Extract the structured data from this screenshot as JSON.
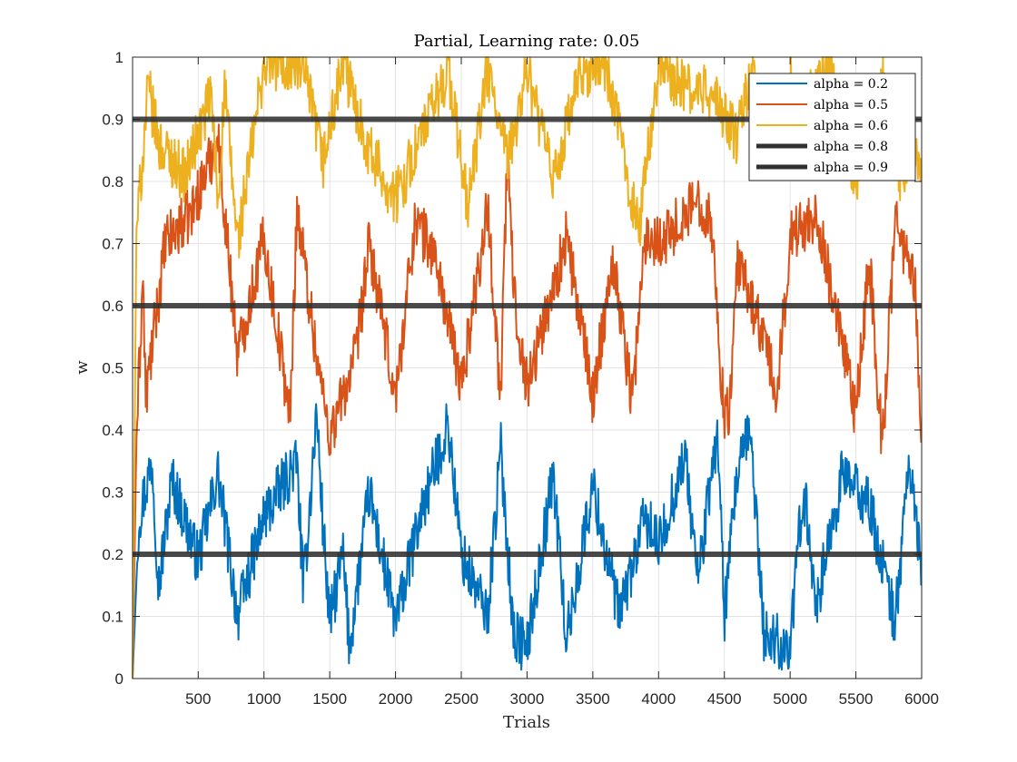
{
  "chart_data": {
    "type": "line",
    "title": "Partial, Learning rate: 0.05",
    "xlabel": "Trials",
    "ylabel": "w",
    "xlim": [
      1,
      6000
    ],
    "ylim": [
      0,
      1
    ],
    "x_ticks": [
      500,
      1000,
      1500,
      2000,
      2500,
      3000,
      3500,
      4000,
      4500,
      5000,
      5500,
      6000
    ],
    "y_ticks": [
      0,
      0.1,
      0.2,
      0.3,
      0.4,
      0.5,
      0.6,
      0.7,
      0.8,
      0.9,
      1
    ],
    "y_tick_labels": [
      "0",
      "0.1",
      "0.2",
      "0.3",
      "0.4",
      "0.5",
      "0.6",
      "0.7",
      "0.8",
      "0.9",
      "1"
    ],
    "grid": true,
    "legend_position": "top-right",
    "series": [
      {
        "name": "alpha = 0.2",
        "color": "#0072BD",
        "style": "noisy",
        "mean": 0.2,
        "x": [
          1,
          50,
          150,
          200,
          300,
          500,
          650,
          800,
          1000,
          1250,
          1300,
          1400,
          1450,
          1500,
          1600,
          1650,
          1800,
          2000,
          2200,
          2400,
          2500,
          2700,
          2800,
          2900,
          3000,
          3200,
          3300,
          3500,
          3700,
          3900,
          4000,
          4200,
          4300,
          4450,
          4500,
          4600,
          4700,
          4800,
          5000,
          5100,
          5200,
          5400,
          5600,
          5800,
          5900,
          6000
        ],
        "y": [
          0.0,
          0.26,
          0.35,
          0.15,
          0.32,
          0.19,
          0.33,
          0.1,
          0.26,
          0.35,
          0.14,
          0.43,
          0.24,
          0.09,
          0.2,
          0.05,
          0.3,
          0.09,
          0.27,
          0.41,
          0.2,
          0.1,
          0.37,
          0.07,
          0.05,
          0.33,
          0.06,
          0.31,
          0.1,
          0.26,
          0.21,
          0.36,
          0.16,
          0.4,
          0.1,
          0.33,
          0.4,
          0.07,
          0.05,
          0.31,
          0.12,
          0.33,
          0.28,
          0.09,
          0.35,
          0.18
        ]
      },
      {
        "name": "alpha = 0.5",
        "color": "#D95319",
        "style": "noisy",
        "mean": 0.6,
        "x": [
          1,
          30,
          80,
          100,
          250,
          450,
          650,
          800,
          1000,
          1200,
          1250,
          1400,
          1500,
          1700,
          1800,
          2000,
          2150,
          2300,
          2500,
          2700,
          2800,
          2850,
          2900,
          3000,
          3300,
          3500,
          3650,
          3800,
          3900,
          4050,
          4300,
          4400,
          4500,
          4550,
          4600,
          4800,
          4900,
          5000,
          5200,
          5500,
          5600,
          5700,
          5800,
          5950,
          6000
        ],
        "y": [
          0.0,
          0.38,
          0.65,
          0.45,
          0.7,
          0.75,
          0.87,
          0.52,
          0.71,
          0.42,
          0.76,
          0.52,
          0.39,
          0.52,
          0.7,
          0.45,
          0.74,
          0.68,
          0.47,
          0.76,
          0.45,
          0.85,
          0.62,
          0.47,
          0.71,
          0.45,
          0.68,
          0.45,
          0.71,
          0.71,
          0.77,
          0.74,
          0.41,
          0.45,
          0.67,
          0.55,
          0.45,
          0.71,
          0.75,
          0.42,
          0.68,
          0.37,
          0.74,
          0.63,
          0.37
        ]
      },
      {
        "name": "alpha = 0.6",
        "color": "#EDB120",
        "style": "noisy",
        "mean": 0.9,
        "x": [
          1,
          30,
          70,
          120,
          200,
          400,
          600,
          650,
          700,
          800,
          1000,
          1300,
          1450,
          1600,
          1800,
          2000,
          2400,
          2550,
          2700,
          2850,
          3000,
          3200,
          3400,
          3600,
          3800,
          3850,
          4000,
          4200,
          4400,
          4600,
          4700,
          4850,
          5000,
          5100,
          5300,
          5500,
          5700,
          5800,
          5950,
          6000
        ],
        "y": [
          0.0,
          0.72,
          0.82,
          0.95,
          0.86,
          0.81,
          0.94,
          0.76,
          0.95,
          0.7,
          0.99,
          0.98,
          0.83,
          0.99,
          0.85,
          0.77,
          0.98,
          0.76,
          0.98,
          0.83,
          0.98,
          0.8,
          0.97,
          0.99,
          0.77,
          0.72,
          0.99,
          0.95,
          0.94,
          0.87,
          0.98,
          0.85,
          0.96,
          0.92,
          1.0,
          0.8,
          0.97,
          0.8,
          0.86,
          0.82
        ]
      },
      {
        "name": "alpha = 0.8",
        "color": "#303030",
        "style": "reference",
        "constant": 0.2
      },
      {
        "name": "alpha = 0.9",
        "color": "#303030",
        "style": "reference",
        "constant": 0.6
      }
    ],
    "extra_reference_lines": [
      {
        "constant": 0.9,
        "color": "#303030"
      }
    ]
  }
}
